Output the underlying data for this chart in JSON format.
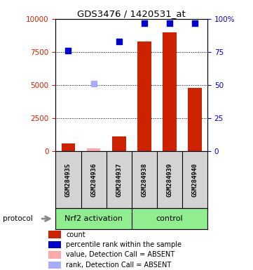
{
  "title": "GDS3476 / 1420531_at",
  "samples": [
    "GSM284935",
    "GSM284936",
    "GSM284937",
    "GSM284938",
    "GSM284939",
    "GSM284940"
  ],
  "bar_values": [
    600,
    200,
    1100,
    8300,
    9000,
    4800
  ],
  "bar_color": "#cc2200",
  "absent_bar_values": [
    null,
    200,
    null,
    null,
    null,
    null
  ],
  "absent_bar_color": "#ffaaaa",
  "blue_squares": [
    7600,
    null,
    8300,
    9700,
    9700,
    9700
  ],
  "blue_absent_squares": [
    null,
    5100,
    null,
    null,
    null,
    null
  ],
  "ylim_left": [
    0,
    10000
  ],
  "ylim_right": [
    0,
    100
  ],
  "yticks_left": [
    0,
    2500,
    5000,
    7500,
    10000
  ],
  "yticks_right": [
    0,
    25,
    50,
    75,
    100
  ],
  "ytick_labels_left": [
    "0",
    "2500",
    "5000",
    "7500",
    "10000"
  ],
  "ytick_labels_right": [
    "0",
    "25",
    "50",
    "75",
    "100%"
  ],
  "sample_area_facecolor": "#d3d3d3",
  "left_tick_color": "#cc2200",
  "right_tick_color": "#0000cc",
  "legend_labels": [
    "count",
    "percentile rank within the sample",
    "value, Detection Call = ABSENT",
    "rank, Detection Call = ABSENT"
  ],
  "legend_colors": [
    "#cc2200",
    "#0000cc",
    "#ffaaaa",
    "#aaaaff"
  ],
  "protocol_color": "#90ee90",
  "group1_label": "Nrf2 activation",
  "group2_label": "control"
}
